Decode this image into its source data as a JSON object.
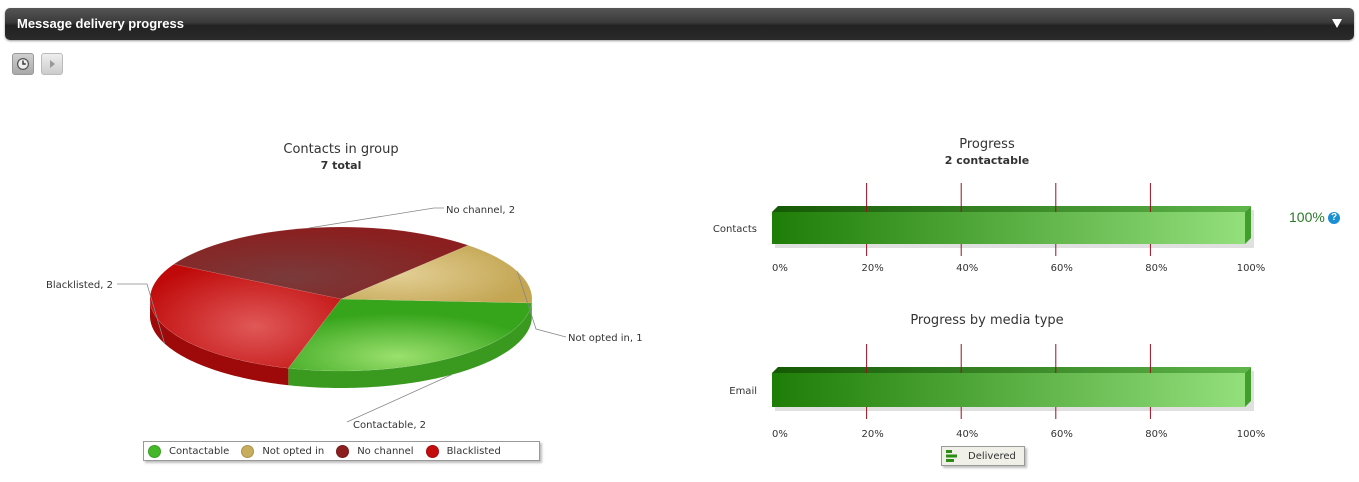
{
  "panel": {
    "title": "Message delivery progress"
  },
  "toolbar": {
    "history_icon": "clock-icon",
    "play_icon": "play-icon"
  },
  "pie": {
    "title": "Contacts in group",
    "subtitle": "7 total",
    "slice_labels": [
      "Contactable, 2",
      "Not opted in, 1",
      "No channel, 2",
      "Blacklisted, 2"
    ],
    "legend": [
      "Contactable",
      "Not opted in",
      "No channel",
      "Blacklisted"
    ],
    "colors": [
      "#45b82a",
      "#c9ad5e",
      "#8b1f1f",
      "#c40d0d"
    ]
  },
  "progress": {
    "title": "Progress",
    "subtitle": "2 contactable",
    "row_label": "Contacts",
    "percent_text": "100%",
    "help_glyph": "?"
  },
  "media": {
    "title": "Progress by media type",
    "row_label": "Email",
    "legend": "Delivered"
  },
  "axis_ticks": [
    "0%",
    "20%",
    "40%",
    "60%",
    "80%",
    "100%"
  ],
  "chart_data": [
    {
      "type": "pie",
      "title": "Contacts in group",
      "subtitle": "7 total",
      "categories": [
        "Contactable",
        "Not opted in",
        "No channel",
        "Blacklisted"
      ],
      "values": [
        2,
        1,
        2,
        2
      ],
      "legend_position": "bottom"
    },
    {
      "type": "bar",
      "title": "Progress",
      "subtitle": "2 contactable",
      "categories": [
        "Contacts"
      ],
      "values": [
        100
      ],
      "xlim": [
        0,
        100
      ],
      "tick_labels": [
        "0%",
        "20%",
        "40%",
        "60%",
        "80%",
        "100%"
      ]
    },
    {
      "type": "bar",
      "title": "Progress by media type",
      "categories": [
        "Email"
      ],
      "series": [
        {
          "name": "Delivered",
          "values": [
            100
          ]
        }
      ],
      "xlim": [
        0,
        100
      ],
      "tick_labels": [
        "0%",
        "20%",
        "40%",
        "60%",
        "80%",
        "100%"
      ],
      "legend_position": "bottom"
    }
  ]
}
